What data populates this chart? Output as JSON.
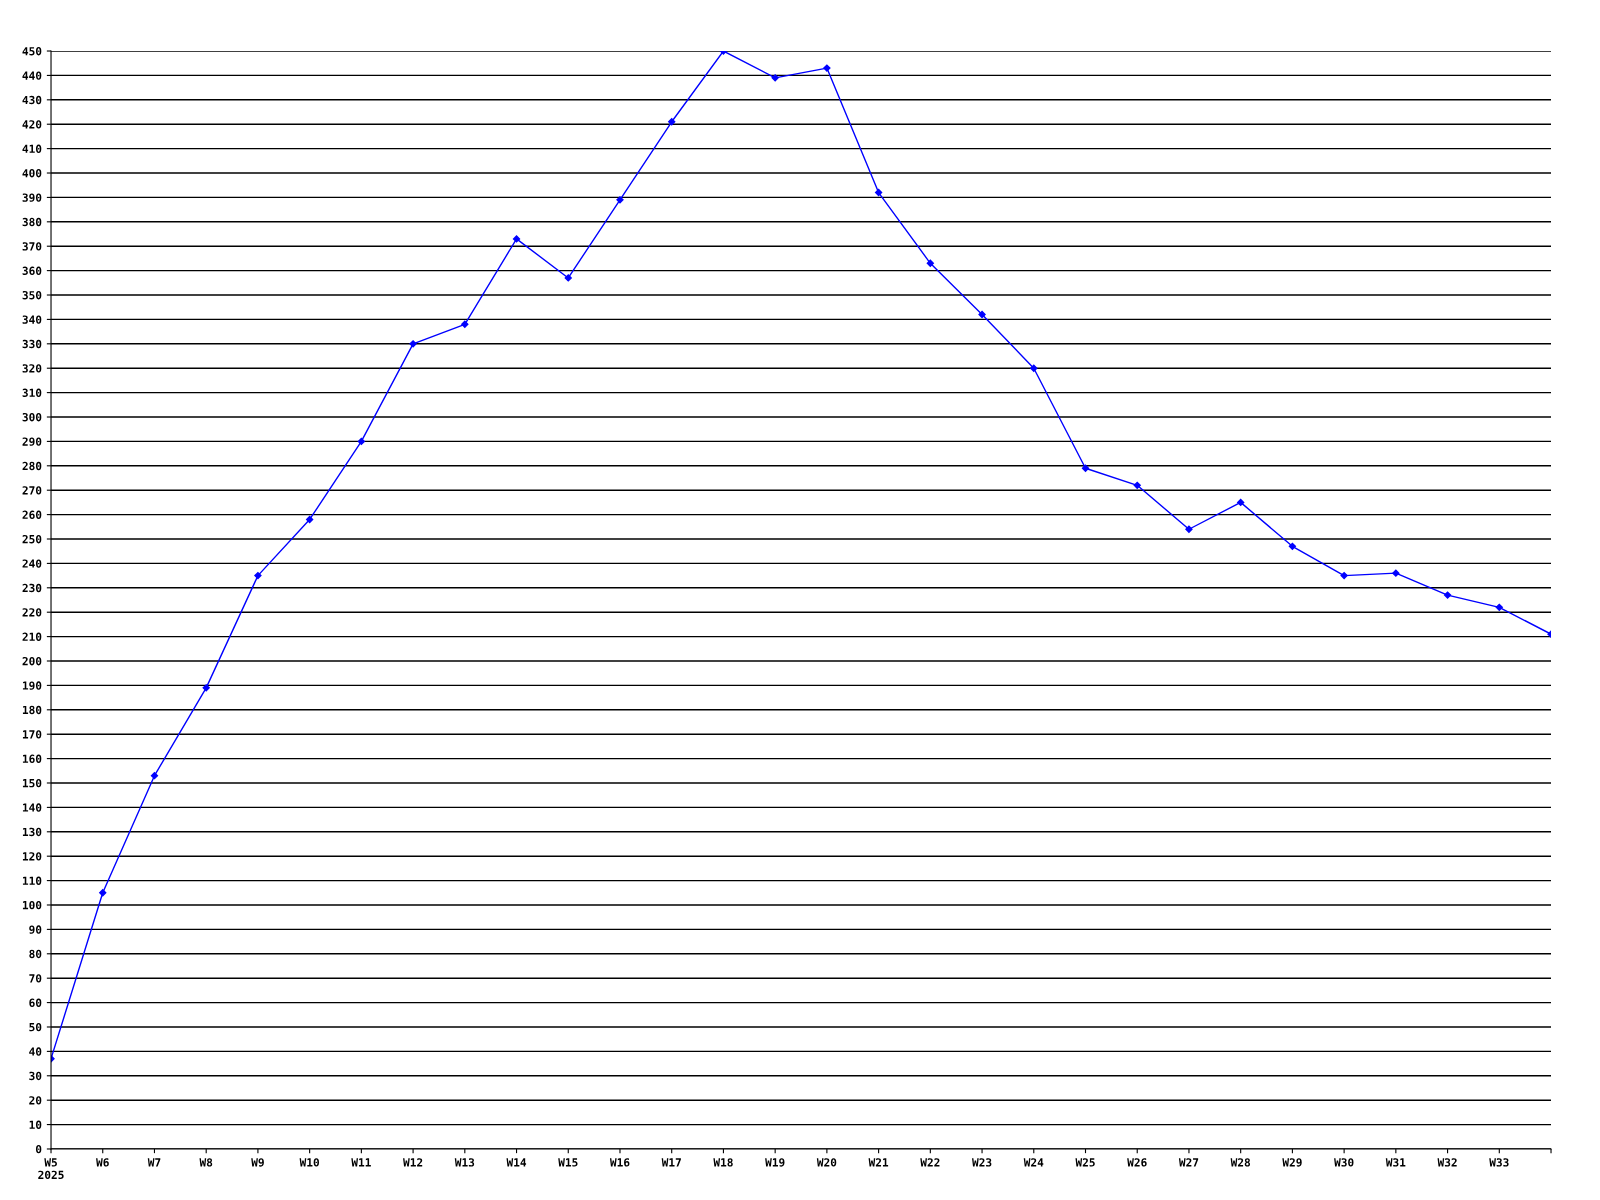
{
  "chart_data": {
    "type": "line",
    "categories": [
      "W5\n2025",
      "W6",
      "W7",
      "W8",
      "W9",
      "W10",
      "W11",
      "W12",
      "W13",
      "W14",
      "W15",
      "W16",
      "W17",
      "W18",
      "W19",
      "W20",
      "W21",
      "W22",
      "W23",
      "W24",
      "W25",
      "W26",
      "W27",
      "W28",
      "W29",
      "W30",
      "W31",
      "W32",
      "W33",
      null
    ],
    "series": [
      {
        "color": "#0000ff",
        "values": [
          37,
          105,
          153,
          189,
          235,
          258,
          290,
          330,
          338,
          373,
          357,
          389,
          421,
          450,
          439,
          443,
          392,
          363,
          342,
          320,
          279,
          272,
          254,
          265,
          247,
          235,
          236,
          227,
          222,
          211
        ]
      }
    ],
    "ylim": [
      0,
      450
    ],
    "yticks": [
      0,
      10,
      20,
      30,
      40,
      50,
      60,
      70,
      80,
      90,
      100,
      110,
      120,
      130,
      140,
      150,
      160,
      170,
      180,
      190,
      200,
      210,
      220,
      230,
      240,
      250,
      260,
      270,
      280,
      290,
      300,
      310,
      320,
      330,
      340,
      350,
      360,
      370,
      380,
      390,
      400,
      410,
      420,
      430,
      440,
      450
    ],
    "grid": "y",
    "marker": "diamond",
    "line_style": "solid"
  }
}
